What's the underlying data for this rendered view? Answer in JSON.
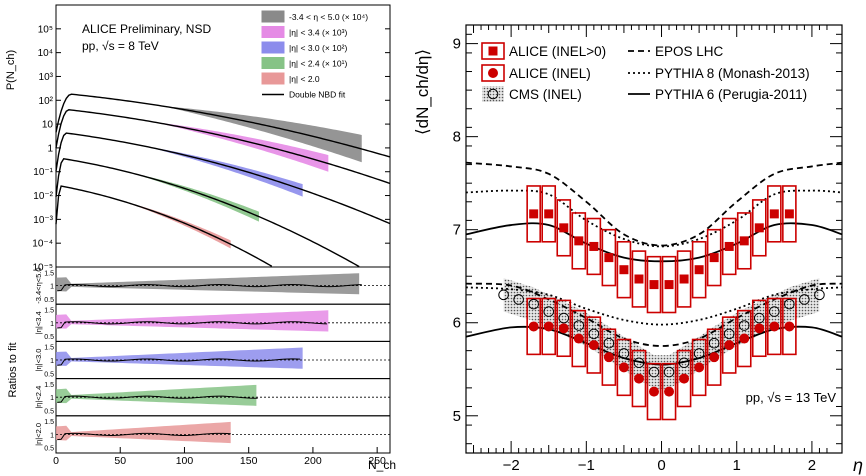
{
  "chart_data": [
    {
      "panel": "left",
      "type": "line",
      "header_lines": [
        "ALICE Preliminary, NSD",
        "pp, √s = 8 TeV"
      ],
      "xlabel": "N_ch",
      "ylabel": "P(N_ch)",
      "ratio_ylabel": "Ratios to fit",
      "xlim": [
        0,
        260
      ],
      "x_ticks": [
        "0",
        "50",
        "100",
        "150",
        "200",
        "250"
      ],
      "y_log": true,
      "ylim": [
        1e-05,
        1000000.0
      ],
      "y_ticks": [
        "10⁻⁵",
        "10⁻⁴",
        "10⁻³",
        "10⁻²",
        "10⁻¹",
        "1",
        "10",
        "10²",
        "10³",
        "10⁴",
        "10⁵"
      ],
      "legend_position": "top-right",
      "series": [
        {
          "name": "-3.4 < η < 5.0 (× 10⁴)",
          "color": "#8a8a8a",
          "peak_x": 12,
          "peak_y": 180,
          "end_x": 238,
          "end_y": 0.9,
          "band_end": [
            0.25,
            3.5
          ]
        },
        {
          "name": "|η| < 3.4 (× 10³)",
          "color": "#e58ae5",
          "peak_x": 10,
          "peak_y": 40,
          "end_x": 212,
          "end_y": 0.22,
          "band_end": [
            0.1,
            0.5
          ]
        },
        {
          "name": "|η| < 3.0 (× 10²)",
          "color": "#8c8cec",
          "peak_x": 8,
          "peak_y": 4.2,
          "end_x": 192,
          "end_y": 0.0175,
          "band_end": [
            0.009,
            0.03
          ]
        },
        {
          "name": "|η| < 2.4 (× 10¹)",
          "color": "#86c386",
          "peak_x": 6,
          "peak_y": 0.35,
          "end_x": 158,
          "end_y": 0.0013,
          "band_end": [
            0.0008,
            0.0021
          ]
        },
        {
          "name": "|η| < 2.0",
          "color": "#e89898",
          "peak_x": 4,
          "peak_y": 0.025,
          "end_x": 136,
          "end_y": 9e-05,
          "band_end": [
            6e-05,
            0.00013
          ]
        },
        {
          "name": "Double NBD fit",
          "color": "#000000"
        }
      ],
      "ratio_panels": [
        {
          "label": "-3.4<η<5.0",
          "color": "#8a8a8a",
          "xmax": 238,
          "ticks": [
            "1.5",
            "1",
            "0.5"
          ]
        },
        {
          "label": "|η|<3.4",
          "color": "#e58ae5",
          "xmax": 212,
          "ticks": [
            "1.5",
            "1",
            "0.5"
          ]
        },
        {
          "label": "|η|<3.0",
          "color": "#8c8cec",
          "xmax": 192,
          "ticks": [
            "1.5",
            "1",
            "0.5"
          ]
        },
        {
          "label": "|η|<2.4",
          "color": "#86c386",
          "xmax": 158,
          "ticks": [
            "1.5",
            "1",
            "0.5"
          ]
        },
        {
          "label": "|η|<2.0",
          "color": "#e89898",
          "xmax": 136,
          "ticks": [
            "1.5",
            "1",
            "0.5"
          ]
        }
      ],
      "ratio_ylim": [
        0.5,
        1.5
      ]
    },
    {
      "panel": "right",
      "type": "scatter",
      "xlabel": "η",
      "ylabel": "⟨dN_ch/dη⟩",
      "xlim": [
        -2.6,
        2.4
      ],
      "ylim": [
        4.6,
        9.2
      ],
      "x_ticks": [
        "−2",
        "−1",
        "0",
        "1",
        "2"
      ],
      "y_ticks": [
        "5",
        "6",
        "7",
        "8",
        "9"
      ],
      "annotation": "pp, √s = 13 TeV",
      "legend": [
        "ALICE (INEL>0)",
        "ALICE (INEL)",
        "CMS (INEL)",
        "EPOS LHC",
        "PYTHIA 8 (Monash-2013)",
        "PYTHIA 6 (Perugia-2011)"
      ],
      "series": [
        {
          "name": "ALICE (INEL>0)",
          "color": "#cc0000",
          "x": [
            -1.7,
            -1.5,
            -1.3,
            -1.1,
            -0.9,
            -0.7,
            -0.5,
            -0.3,
            -0.1,
            0.1,
            0.3,
            0.5,
            0.7,
            0.9,
            1.1,
            1.3,
            1.5,
            1.7
          ],
          "y": [
            7.17,
            7.17,
            7.02,
            6.88,
            6.82,
            6.7,
            6.57,
            6.47,
            6.41,
            6.41,
            6.47,
            6.57,
            6.7,
            6.82,
            6.88,
            7.02,
            7.17,
            7.17
          ],
          "sys": 0.3
        },
        {
          "name": "ALICE (INEL)",
          "color": "#cc0000",
          "x": [
            -1.7,
            -1.5,
            -1.3,
            -1.1,
            -0.9,
            -0.7,
            -0.5,
            -0.3,
            -0.1,
            0.1,
            0.3,
            0.5,
            0.7,
            0.9,
            1.1,
            1.3,
            1.5,
            1.7
          ],
          "y": [
            5.96,
            5.96,
            5.94,
            5.83,
            5.76,
            5.63,
            5.52,
            5.4,
            5.26,
            5.26,
            5.4,
            5.52,
            5.63,
            5.76,
            5.83,
            5.94,
            5.96,
            5.96
          ],
          "sys": 0.3
        },
        {
          "name": "CMS (INEL)",
          "x": [
            -2.1,
            -1.9,
            -1.7,
            -1.5,
            -1.3,
            -1.1,
            -0.9,
            -0.7,
            -0.5,
            -0.3,
            -0.1,
            0.1,
            0.3,
            0.5,
            0.7,
            0.9,
            1.1,
            1.3,
            1.5,
            1.7,
            1.9,
            2.1
          ],
          "y": [
            6.3,
            6.25,
            6.2,
            6.12,
            6.05,
            5.97,
            5.88,
            5.78,
            5.67,
            5.57,
            5.47,
            5.47,
            5.57,
            5.67,
            5.78,
            5.88,
            5.97,
            6.05,
            6.12,
            6.2,
            6.25,
            6.3
          ],
          "band": 0.18
        },
        {
          "name": "EPOS LHC",
          "style": "dashed",
          "x": [
            -2.6,
            -2.0,
            -1.5,
            -1.0,
            -0.5,
            0,
            0.5,
            1.0,
            1.5,
            2.0,
            2.4
          ],
          "y": [
            7.72,
            7.68,
            7.6,
            7.3,
            6.95,
            6.83,
            6.95,
            7.3,
            7.6,
            7.68,
            7.72
          ],
          "y_lower": [
            6.42,
            6.4,
            6.25,
            6.05,
            5.83,
            5.75,
            5.83,
            6.05,
            6.25,
            6.4,
            6.42
          ]
        },
        {
          "name": "PYTHIA 8 (Monash-2013)",
          "style": "dotted",
          "x": [
            -2.6,
            -2.0,
            -1.5,
            -1.0,
            -0.5,
            0,
            0.5,
            1.0,
            1.5,
            2.0,
            2.4
          ],
          "y": [
            7.4,
            7.42,
            7.38,
            7.1,
            6.9,
            6.82,
            6.9,
            7.1,
            7.38,
            7.42,
            7.4
          ],
          "y_lower": [
            6.38,
            6.36,
            6.3,
            6.15,
            6.03,
            5.98,
            6.03,
            6.15,
            6.3,
            6.36,
            6.38
          ]
        },
        {
          "name": "PYTHIA 6 (Perugia-2011)",
          "style": "solid",
          "x": [
            -2.6,
            -2.0,
            -1.5,
            -1.0,
            -0.5,
            0,
            0.5,
            1.0,
            1.5,
            2.0,
            2.4
          ],
          "y": [
            6.95,
            7.05,
            7.05,
            6.85,
            6.7,
            6.66,
            6.7,
            6.85,
            7.05,
            7.05,
            6.95
          ],
          "y_lower": [
            5.85,
            5.95,
            5.93,
            5.78,
            5.62,
            5.55,
            5.62,
            5.78,
            5.93,
            5.95,
            5.85
          ]
        }
      ]
    }
  ]
}
